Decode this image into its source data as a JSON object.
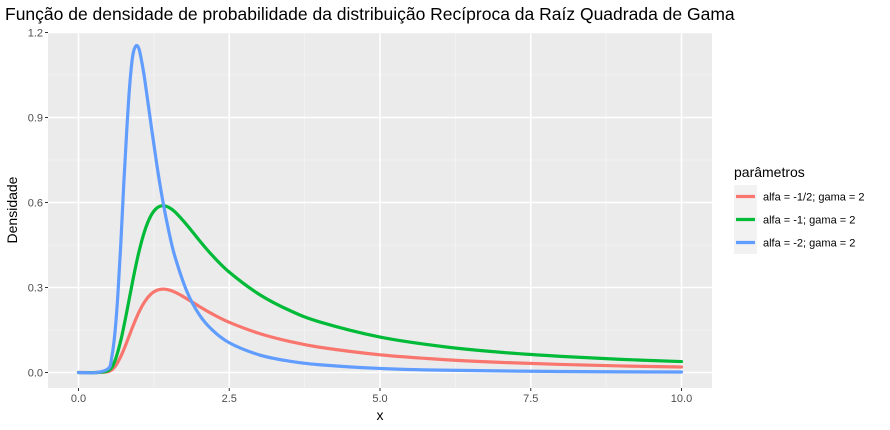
{
  "chart_data": {
    "type": "line",
    "title": "Função de densidade de probabilidade da distribuição Recíproca da Raíz Quadrada de Gama",
    "xlabel": "x",
    "ylabel": "Densidade",
    "xlim": [
      0,
      10
    ],
    "ylim": [
      0,
      1.2
    ],
    "x_ticks": [
      "0.0",
      "2.5",
      "5.0",
      "7.5",
      "10.0"
    ],
    "y_ticks": [
      "0.0",
      "0.3",
      "0.6",
      "0.9",
      "1.2"
    ],
    "grid": true,
    "legend": {
      "title": "parâmetros",
      "position": "right"
    },
    "series": [
      {
        "name": "alfa = -1/2; gama = 2",
        "color": "#F8766D",
        "x": [
          0,
          0.3,
          0.5,
          0.6,
          0.7,
          0.8,
          0.9,
          1.0,
          1.1,
          1.2,
          1.3,
          1.4,
          1.5,
          1.6,
          1.7,
          1.8,
          2.0,
          2.2,
          2.5,
          3.0,
          3.5,
          4.0,
          5.0,
          6.0,
          7.0,
          8.0,
          9.0,
          10.0
        ],
        "values": [
          0,
          0,
          0.0037,
          0.0197,
          0.056,
          0.1068,
          0.1621,
          0.212,
          0.2507,
          0.2765,
          0.2903,
          0.2944,
          0.2913,
          0.2834,
          0.2725,
          0.26,
          0.2336,
          0.2088,
          0.1771,
          0.1377,
          0.1096,
          0.0892,
          0.0625,
          0.0463,
          0.0357,
          0.0285,
          0.0232,
          0.0193
        ]
      },
      {
        "name": "alfa = -1; gama = 2",
        "color": "#00BA38",
        "x": [
          0,
          0.3,
          0.5,
          0.6,
          0.7,
          0.8,
          0.9,
          1.0,
          1.1,
          1.2,
          1.3,
          1.4,
          1.5,
          1.6,
          1.8,
          2.0,
          2.2,
          2.5,
          3.0,
          3.5,
          4.0,
          5.0,
          6.0,
          7.0,
          8.0,
          9.0,
          10.0
        ],
        "values": [
          0,
          0,
          0.0075,
          0.0393,
          0.112,
          0.2136,
          0.3242,
          0.424,
          0.5014,
          0.553,
          0.5805,
          0.5888,
          0.5826,
          0.5668,
          0.52,
          0.4672,
          0.4176,
          0.3542,
          0.2754,
          0.2192,
          0.1784,
          0.125,
          0.0926,
          0.0714,
          0.057,
          0.0464,
          0.0386
        ]
      },
      {
        "name": "alfa = -2; gama = 2",
        "color": "#619CFF",
        "x": [
          0,
          0.3,
          0.5,
          0.55,
          0.6,
          0.65,
          0.7,
          0.75,
          0.8,
          0.85,
          0.9,
          0.95,
          1.0,
          1.05,
          1.1,
          1.2,
          1.3,
          1.4,
          1.5,
          1.6,
          1.8,
          2.0,
          2.2,
          2.5,
          3.0,
          3.5,
          4.0,
          5.0,
          6.0,
          8.0,
          10.0
        ],
        "values": [
          0,
          0,
          0.015,
          0.052,
          0.1312,
          0.2645,
          0.448,
          0.6625,
          0.8544,
          1.0155,
          1.1188,
          1.152,
          1.144,
          1.0958,
          1.032,
          0.8795,
          0.732,
          0.603,
          0.4961,
          0.4086,
          0.2848,
          0.205,
          0.154,
          0.105,
          0.062,
          0.04,
          0.0274,
          0.0143,
          0.0083,
          0.0035,
          0.0018
        ]
      }
    ]
  }
}
